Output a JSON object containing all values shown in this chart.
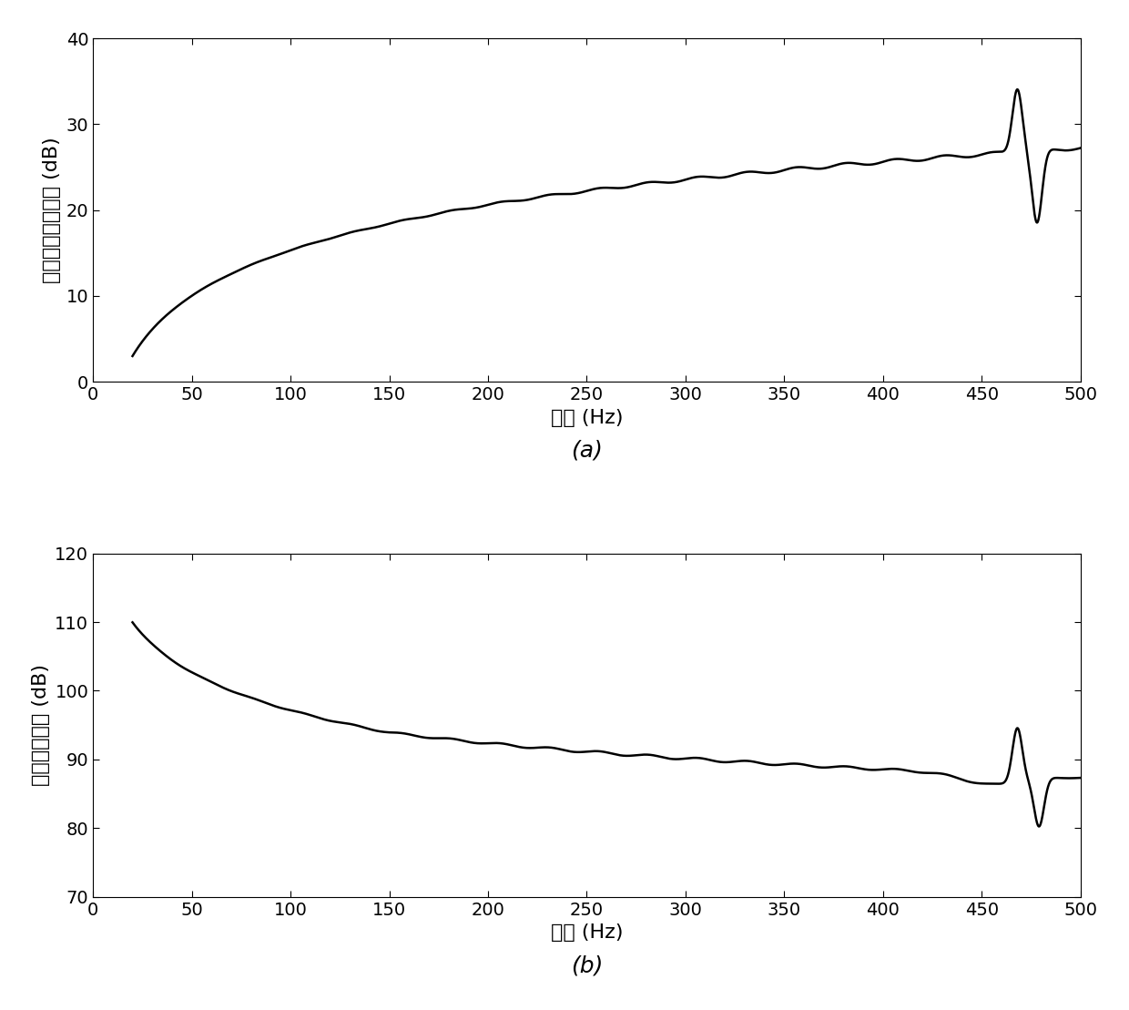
{
  "fig_width": 12.4,
  "fig_height": 11.09,
  "dpi": 100,
  "background_color": "#ffffff",
  "plot_a": {
    "xlabel": "频率 (Hz)",
    "ylabel": "法向入射传声损失 (dB)",
    "caption": "(a)",
    "xlim": [
      0,
      500
    ],
    "ylim": [
      0,
      40
    ],
    "xticks": [
      0,
      50,
      100,
      150,
      200,
      250,
      300,
      350,
      400,
      450,
      500
    ],
    "yticks": [
      0,
      10,
      20,
      30,
      40
    ]
  },
  "plot_b": {
    "xlabel": "频率 (Hz)",
    "ylabel": "辐射声功率级 (dB)",
    "caption": "(b)",
    "xlim": [
      0,
      500
    ],
    "ylim": [
      70,
      120
    ],
    "xticks": [
      0,
      50,
      100,
      150,
      200,
      250,
      300,
      350,
      400,
      450,
      500
    ],
    "yticks": [
      70,
      80,
      90,
      100,
      110,
      120
    ]
  },
  "line_color": "#000000",
  "line_width": 1.8,
  "font_size_label": 16,
  "font_size_tick": 14,
  "font_size_caption": 18
}
